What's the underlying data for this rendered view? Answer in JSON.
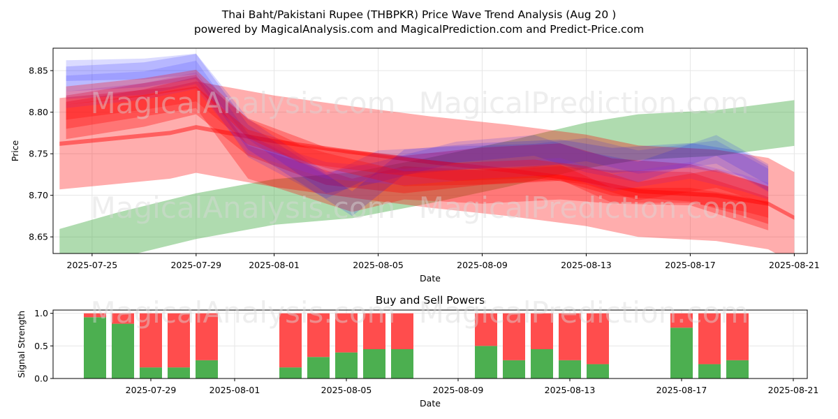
{
  "title_line1": "Thai Baht/Pakistani Rupee (THBPKR) Price Wave Trend Analysis (Aug 20 )",
  "title_line2": "powered by MagicalAnalysis.com and MagicalPrediction.com and Predict-Price.com",
  "watermarks": [
    "MagicalAnalysis.com",
    "MagicalPrediction.com"
  ],
  "colors": {
    "green": "#2ca02c",
    "red": "#ff0000",
    "blue": "#0000ff",
    "purple": "#8a2be2",
    "bar_green": "#4caf50",
    "bar_red": "#ff4d4d"
  },
  "chart_data": [
    {
      "type": "area",
      "title": "",
      "xlabel": "Date",
      "ylabel": "Price",
      "x_ticks": [
        "2025-07-25",
        "2025-07-29",
        "2025-08-01",
        "2025-08-05",
        "2025-08-09",
        "2025-08-13",
        "2025-08-17",
        "2025-08-21"
      ],
      "y_ticks": [
        8.65,
        8.7,
        8.75,
        8.8,
        8.85
      ],
      "xlim": [
        "2025-07-23T12:00",
        "2025-08-21T12:00"
      ],
      "ylim": [
        8.63,
        8.877
      ],
      "grid": true,
      "series": [
        {
          "color": "green",
          "center": [
            [
              "2025-07-23T18:00",
              8.632
            ],
            [
              "2025-07-26",
              8.652
            ],
            [
              "2025-07-29",
              8.675
            ],
            [
              "2025-08-01",
              8.692
            ],
            [
              "2025-08-04",
              8.7
            ],
            [
              "2025-08-07",
              8.718
            ],
            [
              "2025-08-10",
              8.738
            ],
            [
              "2025-08-13",
              8.76
            ],
            [
              "2025-08-15",
              8.77
            ],
            [
              "2025-08-18",
              8.775
            ],
            [
              "2025-08-20",
              8.783
            ],
            [
              "2025-08-21",
              8.787
            ]
          ],
          "width": 0.055,
          "opacity": 0.38
        },
        {
          "color": "red",
          "center": [
            [
              "2025-07-23T18:00",
              8.762
            ],
            [
              "2025-07-28",
              8.775
            ],
            [
              "2025-07-29",
              8.782
            ],
            [
              "2025-08-01",
              8.765
            ],
            [
              "2025-08-04",
              8.752
            ],
            [
              "2025-08-07",
              8.74
            ],
            [
              "2025-08-10",
              8.73
            ],
            [
              "2025-08-13",
              8.718
            ],
            [
              "2025-08-15",
              8.705
            ],
            [
              "2025-08-18",
              8.7
            ],
            [
              "2025-08-20",
              8.69
            ],
            [
              "2025-08-21",
              8.673
            ]
          ],
          "width": 0.11,
          "opacity": 0.32
        },
        {
          "color": "red",
          "center": [
            [
              "2025-07-23T18:00",
              8.762
            ],
            [
              "2025-07-28",
              8.775
            ],
            [
              "2025-07-29",
              8.782
            ],
            [
              "2025-08-01",
              8.765
            ],
            [
              "2025-08-04",
              8.752
            ],
            [
              "2025-08-07",
              8.74
            ],
            [
              "2025-08-10",
              8.73
            ],
            [
              "2025-08-13",
              8.718
            ],
            [
              "2025-08-15",
              8.705
            ],
            [
              "2025-08-18",
              8.7
            ],
            [
              "2025-08-20",
              8.69
            ],
            [
              "2025-08-21",
              8.673
            ]
          ],
          "width": 0.005,
          "opacity": 0.45
        },
        {
          "color": "red",
          "center": [
            [
              "2025-07-24",
              8.79
            ],
            [
              "2025-07-27",
              8.805
            ],
            [
              "2025-07-29",
              8.82
            ],
            [
              "2025-07-31",
              8.77
            ],
            [
              "2025-08-03",
              8.735
            ],
            [
              "2025-08-06",
              8.725
            ],
            [
              "2025-08-09",
              8.735
            ],
            [
              "2025-08-12",
              8.74
            ],
            [
              "2025-08-14",
              8.722
            ],
            [
              "2025-08-17",
              8.715
            ],
            [
              "2025-08-19",
              8.698
            ],
            [
              "2025-08-20",
              8.688
            ]
          ],
          "width": 0.045,
          "opacity": 0.32
        },
        {
          "color": "red",
          "center": [
            [
              "2025-07-24",
              8.8
            ],
            [
              "2025-07-27",
              8.815
            ],
            [
              "2025-07-29",
              8.825
            ],
            [
              "2025-07-31",
              8.74
            ],
            [
              "2025-08-02",
              8.72
            ],
            [
              "2025-08-04",
              8.7
            ],
            [
              "2025-08-06",
              8.715
            ],
            [
              "2025-08-09",
              8.71
            ],
            [
              "2025-08-12",
              8.715
            ],
            [
              "2025-08-14",
              8.71
            ],
            [
              "2025-08-17",
              8.708
            ],
            [
              "2025-08-19",
              8.688
            ],
            [
              "2025-08-20",
              8.678
            ]
          ],
          "width": 0.04,
          "opacity": 0.3
        },
        {
          "color": "blue",
          "center": [
            [
              "2025-07-24",
              8.84
            ],
            [
              "2025-07-27",
              8.845
            ],
            [
              "2025-07-29",
              8.855
            ],
            [
              "2025-07-31",
              8.77
            ],
            [
              "2025-08-02",
              8.73
            ],
            [
              "2025-08-04",
              8.69
            ],
            [
              "2025-08-06",
              8.74
            ],
            [
              "2025-08-09",
              8.748
            ],
            [
              "2025-08-12",
              8.752
            ],
            [
              "2025-08-14",
              8.742
            ],
            [
              "2025-08-17",
              8.748
            ],
            [
              "2025-08-19",
              8.738
            ],
            [
              "2025-08-20",
              8.72
            ]
          ],
          "width": 0.03,
          "opacity": 0.16
        },
        {
          "color": "blue",
          "center": [
            [
              "2025-07-24",
              8.85
            ],
            [
              "2025-07-27",
              8.852
            ],
            [
              "2025-07-29",
              8.858
            ],
            [
              "2025-07-31",
              8.78
            ],
            [
              "2025-08-03",
              8.715
            ],
            [
              "2025-08-05",
              8.728
            ],
            [
              "2025-08-08",
              8.752
            ],
            [
              "2025-08-11",
              8.76
            ],
            [
              "2025-08-13",
              8.74
            ],
            [
              "2025-08-15",
              8.728
            ],
            [
              "2025-08-18",
              8.76
            ],
            [
              "2025-08-20",
              8.725
            ]
          ],
          "width": 0.025,
          "opacity": 0.14
        },
        {
          "color": "blue",
          "center": [
            [
              "2025-07-24",
              8.83
            ],
            [
              "2025-07-27",
              8.835
            ],
            [
              "2025-07-29",
              8.848
            ],
            [
              "2025-07-31",
              8.76
            ],
            [
              "2025-08-03",
              8.71
            ],
            [
              "2025-08-05",
              8.74
            ],
            [
              "2025-08-08",
              8.745
            ],
            [
              "2025-08-11",
              8.748
            ],
            [
              "2025-08-13",
              8.755
            ],
            [
              "2025-08-15",
              8.74
            ],
            [
              "2025-08-18",
              8.752
            ],
            [
              "2025-08-20",
              8.718
            ]
          ],
          "width": 0.028,
          "opacity": 0.13
        },
        {
          "color": "purple",
          "center": [
            [
              "2025-07-24",
              8.815
            ],
            [
              "2025-07-27",
              8.825
            ],
            [
              "2025-07-29",
              8.838
            ],
            [
              "2025-07-31",
              8.76
            ],
            [
              "2025-08-03",
              8.73
            ],
            [
              "2025-08-06",
              8.722
            ],
            [
              "2025-08-09",
              8.73
            ],
            [
              "2025-08-12",
              8.735
            ],
            [
              "2025-08-14",
              8.715
            ],
            [
              "2025-08-17",
              8.73
            ],
            [
              "2025-08-19",
              8.715
            ],
            [
              "2025-08-20",
              8.705
            ]
          ],
          "width": 0.02,
          "opacity": 0.2
        },
        {
          "color": "red",
          "center": [
            [
              "2025-07-24",
              8.82
            ],
            [
              "2025-07-27",
              8.83
            ],
            [
              "2025-07-29",
              8.84
            ],
            [
              "2025-07-31",
              8.78
            ],
            [
              "2025-08-02",
              8.75
            ],
            [
              "2025-08-05",
              8.738
            ],
            [
              "2025-08-08",
              8.728
            ],
            [
              "2025-08-11",
              8.732
            ],
            [
              "2025-08-13",
              8.724
            ],
            [
              "2025-08-15",
              8.705
            ],
            [
              "2025-08-18",
              8.72
            ],
            [
              "2025-08-20",
              8.7
            ]
          ],
          "width": 0.022,
          "opacity": 0.28
        },
        {
          "color": "red",
          "center": [
            [
              "2025-07-24",
              8.8
            ],
            [
              "2025-07-27",
              8.812
            ],
            [
              "2025-07-29",
              8.822
            ],
            [
              "2025-07-31",
              8.77
            ],
            [
              "2025-08-03",
              8.742
            ],
            [
              "2025-08-06",
              8.72
            ],
            [
              "2025-08-09",
              8.722
            ],
            [
              "2025-08-12",
              8.728
            ],
            [
              "2025-08-14",
              8.7
            ],
            [
              "2025-08-17",
              8.7
            ],
            [
              "2025-08-19",
              8.69
            ],
            [
              "2025-08-20",
              8.682
            ]
          ],
          "width": 0.018,
          "opacity": 0.28
        }
      ]
    },
    {
      "type": "bar",
      "title": "Buy and Sell Powers",
      "xlabel": "Date",
      "ylabel": "Signal Strength",
      "x_ticks": [
        "2025-07-29",
        "2025-08-01",
        "2025-08-05",
        "2025-08-09",
        "2025-08-13",
        "2025-08-17",
        "2025-08-21"
      ],
      "y_ticks": [
        "0.0",
        "0.5",
        "1.0"
      ],
      "ylim": [
        0,
        1.05
      ],
      "grid": true,
      "categories": [
        "2025-07-27",
        "2025-07-28",
        "2025-07-29",
        "2025-07-30",
        "2025-07-31",
        "2025-08-03",
        "2025-08-04",
        "2025-08-05",
        "2025-08-06",
        "2025-08-07",
        "2025-08-10",
        "2025-08-11",
        "2025-08-12",
        "2025-08-13",
        "2025-08-14",
        "2025-08-17",
        "2025-08-18",
        "2025-08-19"
      ],
      "series": [
        {
          "color": "bar_green",
          "values": [
            0.94,
            0.84,
            0.17,
            0.17,
            0.28,
            0.17,
            0.33,
            0.4,
            0.45,
            0.45,
            0.5,
            0.28,
            0.45,
            0.28,
            0.22,
            0.78,
            0.22,
            0.28
          ]
        },
        {
          "color": "bar_red",
          "values": [
            0.06,
            0.16,
            0.83,
            0.83,
            0.72,
            0.83,
            0.67,
            0.6,
            0.55,
            0.55,
            0.5,
            0.72,
            0.55,
            0.72,
            0.78,
            0.22,
            0.78,
            0.72
          ]
        }
      ]
    }
  ]
}
